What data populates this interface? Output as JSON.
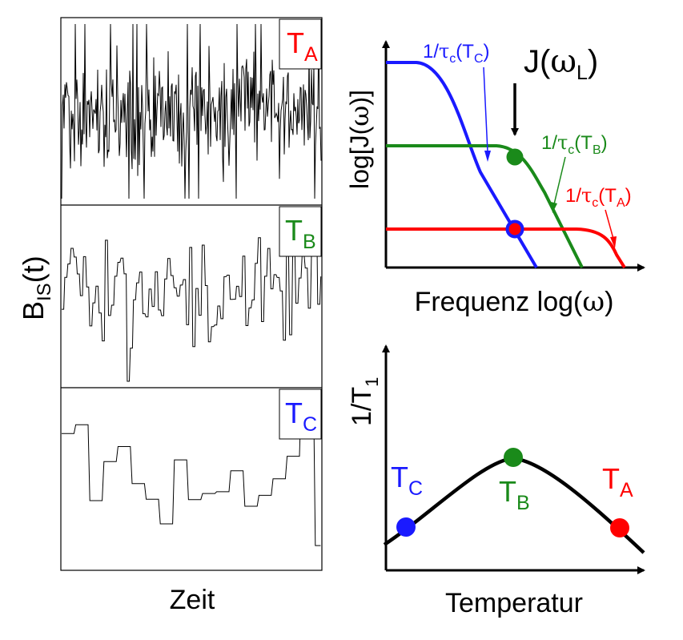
{
  "colors": {
    "A": "#ff0000",
    "B": "#1a8a1a",
    "C": "#1a1aff",
    "ink": "#000000"
  },
  "left": {
    "ylabel_main": "B",
    "ylabel_sub": "IS",
    "ylabel_arg": "(t)",
    "xlabel": "Zeit",
    "panels": [
      {
        "key": "A",
        "T": "T",
        "sub": "A",
        "seed": 11,
        "hold": 1
      },
      {
        "key": "B",
        "T": "T",
        "sub": "B",
        "seed": 29,
        "hold": 3
      },
      {
        "key": "C",
        "T": "T",
        "sub": "C",
        "seed": 47,
        "hold": 8
      }
    ]
  },
  "spectral": {
    "ylabel_pre": "log[J(",
    "ylabel_sym": "ω",
    "ylabel_post": ")]",
    "xlabel_pre": "Frequenz log(",
    "xlabel_sym": "ω",
    "xlabel_post": ")",
    "arrow_label_pre": "J(",
    "arrow_label_sym": "ω",
    "arrow_label_sub": "L",
    "arrow_label_post": ")",
    "tau_labels": [
      {
        "key": "C",
        "pre": "1/",
        "sym": "τ",
        "sub": "c",
        "mid": "(T",
        "tsub": "C",
        "post": ")"
      },
      {
        "key": "B",
        "pre": "1/",
        "sym": "τ",
        "sub": "c",
        "mid": "(T",
        "tsub": "B",
        "post": ")"
      },
      {
        "key": "A",
        "pre": "1/",
        "sym": "τ",
        "sub": "c",
        "mid": "(T",
        "tsub": "A",
        "post": ")"
      }
    ]
  },
  "relax": {
    "ylabel_main": "1/T",
    "ylabel_sub": "1",
    "xlabel": "Temperatur",
    "points": [
      {
        "key": "C",
        "T": "T",
        "sub": "C"
      },
      {
        "key": "B",
        "T": "T",
        "sub": "B"
      },
      {
        "key": "A",
        "T": "T",
        "sub": "A"
      }
    ]
  }
}
